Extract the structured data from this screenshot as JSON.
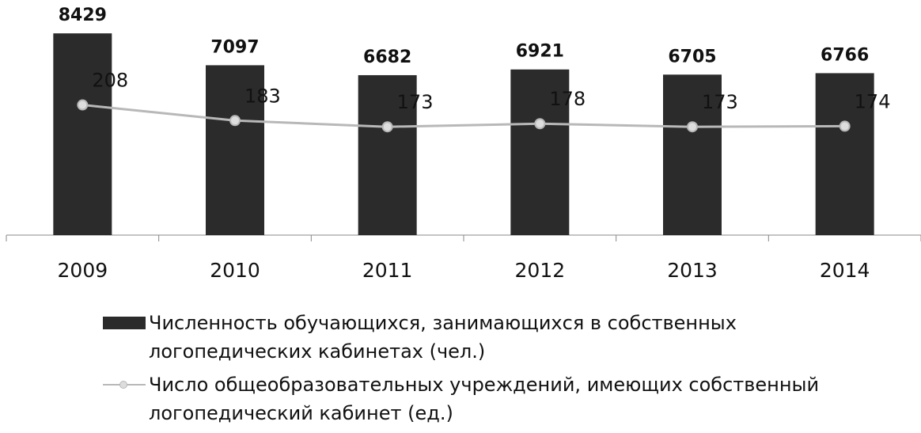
{
  "chart_data": {
    "type": "bar-line",
    "categories": [
      "2009",
      "2010",
      "2011",
      "2012",
      "2013",
      "2014"
    ],
    "series": [
      {
        "name": "Численность обучающихся, занимающихся в собственных логопедических кабинетах (чел.)",
        "color": "#2b2b2b",
        "type": "bar",
        "values": [
          8429,
          7097,
          6682,
          6921,
          6705,
          6766
        ]
      },
      {
        "name": "Число общеобразовательных учреждений, имеющих собственный логопедический кабинет (ед.)",
        "color": "#b8b8b8",
        "type": "line",
        "axis": "y2",
        "values": [
          208,
          183,
          173,
          178,
          173,
          174
        ]
      }
    ],
    "ylim": [
      0,
      8500
    ],
    "y2lim": [
      0,
      325
    ],
    "grid": false,
    "legend": "bottom"
  }
}
